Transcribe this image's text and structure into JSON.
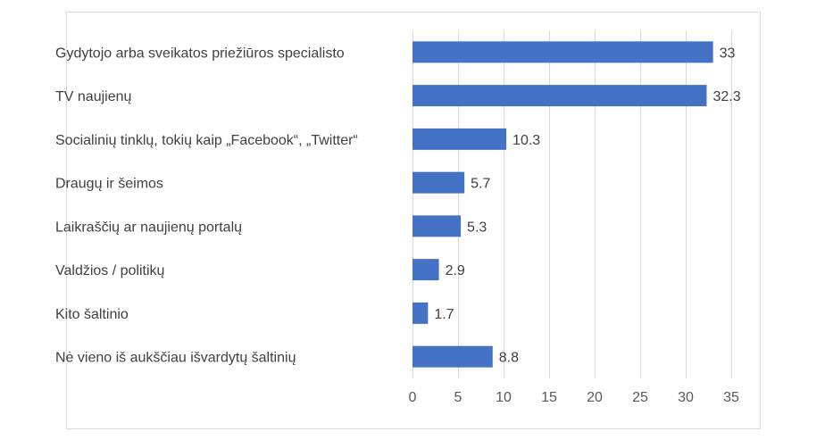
{
  "chart_data": {
    "type": "bar",
    "orientation": "horizontal",
    "categories": [
      "Gydytojo arba sveikatos priežiūros specialisto",
      "TV naujienų",
      "Socialinių tinklų, tokių kaip „Facebook“, „Twitter“",
      "Draugų ir šeimos",
      "Laikraščių ar naujienų portalų",
      "Valdžios / politikų",
      "Kito šaltinio",
      "Nė vieno iš aukščiau išvardytų šaltinių"
    ],
    "values": [
      33,
      32.3,
      10.3,
      5.7,
      5.3,
      2.9,
      1.7,
      8.8
    ],
    "value_labels": [
      "33",
      "32.3",
      "10.3",
      "5.7",
      "5.3",
      "2.9",
      "1.7",
      "8.8"
    ],
    "xlim": [
      0,
      35
    ],
    "xticks": [
      "0",
      "5",
      "10",
      "15",
      "20",
      "25",
      "30",
      "35"
    ],
    "grid": "vertical",
    "legend": "none",
    "bar_color": "#4472c4",
    "grid_color": "#d9d9d9",
    "frame_color": "#d9d9d9"
  }
}
